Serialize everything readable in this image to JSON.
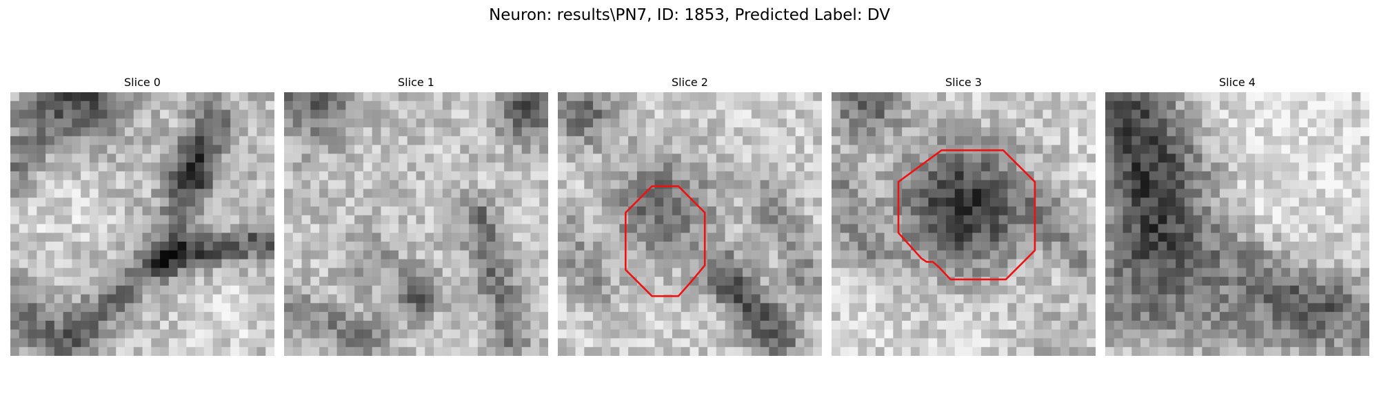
{
  "figure": {
    "title": "Neuron: results\\PN7, ID: 1853, Predicted Label: DV"
  },
  "panels": [
    {
      "title": "Slice 0",
      "contour": false
    },
    {
      "title": "Slice 1",
      "contour": false
    },
    {
      "title": "Slice 2",
      "contour": true
    },
    {
      "title": "Slice 3",
      "contour": true
    },
    {
      "title": "Slice 4",
      "contour": false
    }
  ],
  "colors": {
    "contour": "#ee1111",
    "colormap": "gray"
  }
}
